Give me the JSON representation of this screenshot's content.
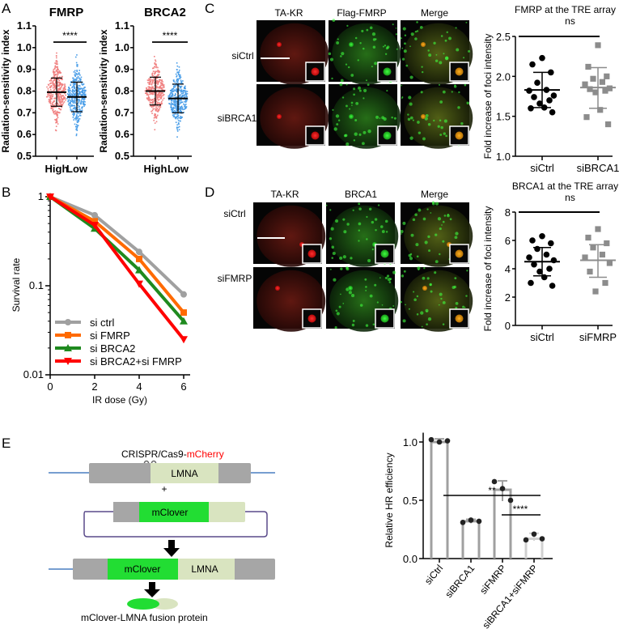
{
  "panels": {
    "A": "A",
    "B": "B",
    "C": "C",
    "D": "D",
    "E": "E"
  },
  "panel_c": {
    "col_headers": [
      "TA-KR",
      "Flag-FMRP",
      "Merge"
    ],
    "row_labels": [
      "siCtrl",
      "siBRCA1"
    ]
  },
  "panel_d": {
    "col_headers": [
      "TA-KR",
      "BRCA1",
      "Merge"
    ],
    "row_labels": [
      "siCtrl",
      "siFMRP"
    ]
  },
  "panel_e_diagram": {
    "crispr_label": "CRISPR/Cas9-",
    "crispr_label_red": "mCherry",
    "lmna": "LMNA",
    "plus": "+",
    "mclover": "mClover",
    "fusion_label": "mClover-LMNA fusion protein"
  },
  "colors": {
    "high": "#f08080",
    "low": "#4a9ee8",
    "ctrl": "#a0a0a0",
    "fmrp": "#ff6a00",
    "brca2": "#1f8a1f",
    "combo": "#ff0000",
    "mclover": "#22dd33",
    "lmna": "#d9e4c0",
    "gene_grey": "#a6a6a6"
  },
  "chart_data": [
    {
      "id": "A1",
      "type": "scatter",
      "title": "FMRP",
      "ylabel": "Radiation-sensitivity index",
      "categories": [
        "High",
        "Low"
      ],
      "ylim": [
        0.5,
        1.1
      ],
      "yticks": [
        "0.5",
        "0.6",
        "0.7",
        "0.8",
        "0.9",
        "1.0",
        "1.1"
      ],
      "series": [
        {
          "name": "High",
          "mean": 0.795,
          "sd": 0.065,
          "min": 0.58,
          "max": 0.99
        },
        {
          "name": "Low",
          "mean": 0.773,
          "sd": 0.068,
          "min": 0.555,
          "max": 1.0
        }
      ],
      "significance": "****"
    },
    {
      "id": "A2",
      "type": "scatter",
      "title": "BRCA2",
      "ylabel": "Radiation-sensitivity index",
      "categories": [
        "High",
        "Low"
      ],
      "ylim": [
        0.5,
        1.1
      ],
      "yticks": [
        "0.5",
        "0.6",
        "0.7",
        "0.8",
        "0.9",
        "1.0",
        "1.1"
      ],
      "series": [
        {
          "name": "High",
          "mean": 0.8,
          "sd": 0.064,
          "min": 0.58,
          "max": 1.0
        },
        {
          "name": "Low",
          "mean": 0.766,
          "sd": 0.066,
          "min": 0.555,
          "max": 0.935
        }
      ],
      "significance": "****"
    },
    {
      "id": "B",
      "type": "line",
      "xlabel": "IR dose (Gy)",
      "ylabel": "Survival rate",
      "yscale": "log",
      "ylim": [
        0.01,
        1
      ],
      "yticks": [
        "0.01",
        "0.1",
        "1"
      ],
      "x": [
        0,
        2,
        4,
        6
      ],
      "xticks": [
        "0",
        "2",
        "4",
        "6"
      ],
      "series": [
        {
          "name": "si ctrl",
          "values": [
            1,
            0.62,
            0.24,
            0.08
          ]
        },
        {
          "name": "si FMRP",
          "values": [
            1,
            0.53,
            0.2,
            0.05
          ]
        },
        {
          "name": "si BRCA2",
          "values": [
            1,
            0.44,
            0.15,
            0.04
          ]
        },
        {
          "name": "si BRCA2+si FMRP",
          "values": [
            1,
            0.48,
            0.105,
            0.025
          ]
        }
      ],
      "legend": "bottom-left"
    },
    {
      "id": "C",
      "type": "scatter",
      "title": "FMRP at the TRE array",
      "ylabel": "Fold increase of foci intensity",
      "categories": [
        "siCtrl",
        "siBRCA1"
      ],
      "ylim": [
        1.0,
        2.5
      ],
      "yticks": [
        "1.0",
        "1.5",
        "2.0",
        "2.5"
      ],
      "significance": "ns",
      "series": [
        {
          "name": "siCtrl",
          "mean": 1.83,
          "sd_low": 1.61,
          "sd_high": 2.05,
          "values": [
            2.23,
            2.15,
            2.05,
            1.92,
            1.83,
            1.82,
            1.76,
            1.74,
            1.7,
            1.66,
            1.61,
            1.6,
            1.55
          ]
        },
        {
          "name": "siBRCA1",
          "mean": 1.86,
          "sd_low": 1.6,
          "sd_high": 2.11,
          "values": [
            2.39,
            2.12,
            2.0,
            1.97,
            1.93,
            1.9,
            1.85,
            1.84,
            1.82,
            1.8,
            1.58,
            1.49,
            1.4
          ]
        }
      ]
    },
    {
      "id": "D",
      "type": "scatter",
      "title": "BRCA1 at the TRE array",
      "ylabel": "Fold increase of  foci intensity",
      "categories": [
        "siCtrl",
        "siFMRP"
      ],
      "ylim": [
        0,
        8
      ],
      "yticks": [
        "0",
        "2",
        "4",
        "6",
        "8"
      ],
      "significance": "ns",
      "series": [
        {
          "name": "siCtrl",
          "mean": 4.5,
          "sd_low": 3.5,
          "sd_high": 5.5,
          "values": [
            6.3,
            6.0,
            5.8,
            5.4,
            5.0,
            4.8,
            4.6,
            4.3,
            4.0,
            3.8,
            3.4,
            3.0,
            2.8
          ]
        },
        {
          "name": "siFMRP",
          "mean": 4.6,
          "sd_low": 3.4,
          "sd_high": 5.7,
          "values": [
            6.8,
            6.2,
            5.8,
            5.5,
            5.0,
            4.8,
            4.4,
            3.8,
            3.0,
            2.4
          ]
        }
      ]
    },
    {
      "id": "E",
      "type": "bar",
      "ylabel": "Relative HR efficiency",
      "categories": [
        "siCtrl",
        "siBRCA1",
        "siFMRP",
        "siBRCA1+siFMRP"
      ],
      "ylim": [
        0,
        1.0
      ],
      "yticks": [
        "0.0",
        "0.5",
        "1.0"
      ],
      "values": [
        1.0,
        0.32,
        0.59,
        0.17
      ],
      "points": [
        [
          1.02,
          1.0,
          1.01
        ],
        [
          0.31,
          0.33,
          0.32
        ],
        [
          0.66,
          0.6,
          0.5
        ],
        [
          0.16,
          0.21,
          0.17
        ]
      ],
      "significance": [
        {
          "label": "**",
          "from": "siBRCA1",
          "to": "siBRCA1+siFMRP"
        },
        {
          "label": "****",
          "from": "siFMRP",
          "to": "siBRCA1+siFMRP"
        }
      ]
    }
  ]
}
